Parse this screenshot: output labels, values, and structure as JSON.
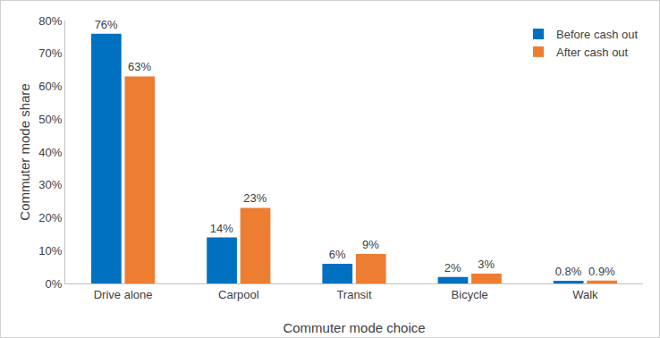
{
  "chart_data": {
    "type": "bar",
    "x_label": "Commuter mode choice",
    "y_label": "Commuter mode share",
    "categories": [
      "Drive alone",
      "Carpool",
      "Transit",
      "Bicycle",
      "Walk"
    ],
    "series": [
      {
        "name": "Before cash out",
        "color": "#0070c0",
        "values": [
          76,
          14,
          6,
          2,
          0.8
        ],
        "value_labels": [
          "76%",
          "14%",
          "6%",
          "2%",
          "0.8%"
        ]
      },
      {
        "name": "After cash out",
        "color": "#ed7d31",
        "values": [
          63,
          23,
          9,
          3,
          0.9
        ],
        "value_labels": [
          "63%",
          "23%",
          "9%",
          "3%",
          "0.9%"
        ]
      }
    ],
    "ylim": [
      0,
      80
    ],
    "yticks": [
      {
        "value": 0,
        "label": "0%"
      },
      {
        "value": 10,
        "label": "10%"
      },
      {
        "value": 20,
        "label": "20%"
      },
      {
        "value": 30,
        "label": "30%"
      },
      {
        "value": 40,
        "label": "40%"
      },
      {
        "value": 50,
        "label": "50%"
      },
      {
        "value": 60,
        "label": "60%"
      },
      {
        "value": 70,
        "label": "70%"
      },
      {
        "value": 80,
        "label": "80%"
      }
    ],
    "grid": false,
    "legend": "upper right",
    "data_labels": true
  }
}
